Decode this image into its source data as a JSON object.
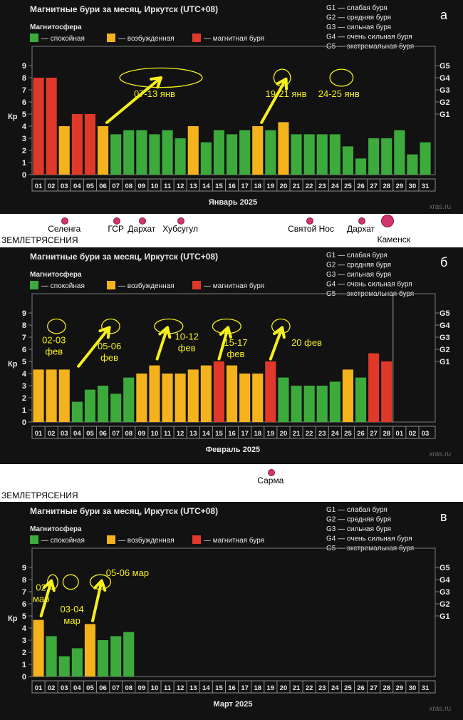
{
  "legend_keys": {
    "calm": "— спокойная",
    "excited": "— возбужденная",
    "storm": "— магнитная буря"
  },
  "storm_levels": [
    "G1 — слабая буря",
    "G2 — средняя буря",
    "G3 — сильная буря",
    "G4 — очень сильная буря",
    "G5 — экстремальная буря"
  ],
  "colors": {
    "calm": "#3cab3c",
    "excited": "#f4b31c",
    "storm": "#e0392a",
    "annotation": "#f5f01e"
  },
  "chart_data": [
    {
      "type": "bar",
      "panel_letter": "а",
      "title": "Магнитные бури за месяц, Иркутск (UTC+08)",
      "subtitle": "Магнитосфера",
      "xlabel": "Январь 2025",
      "ylabel": "Кр",
      "ylim": [
        0,
        9
      ],
      "yticks": [
        0,
        1,
        2,
        3,
        4,
        5,
        6,
        7,
        8,
        9
      ],
      "right_ticks": [
        [
          "G1",
          5
        ],
        [
          "G2",
          6
        ],
        [
          "G3",
          7
        ],
        [
          "G4",
          8
        ],
        [
          "G5",
          9
        ]
      ],
      "watermark": "xras.ru",
      "categories": [
        "01",
        "02",
        "03",
        "04",
        "05",
        "06",
        "07",
        "08",
        "09",
        "10",
        "11",
        "12",
        "13",
        "14",
        "15",
        "16",
        "17",
        "18",
        "19",
        "20",
        "21",
        "22",
        "23",
        "24",
        "25",
        "26",
        "27",
        "28",
        "29",
        "30",
        "31"
      ],
      "values": [
        8,
        8,
        4,
        5,
        5,
        4,
        3.33,
        3.67,
        3.67,
        3.33,
        3.67,
        3,
        4,
        2.67,
        3.67,
        3.33,
        3.67,
        4,
        3.67,
        4.33,
        3.33,
        3.33,
        3.33,
        3.33,
        2.33,
        1.33,
        3,
        3,
        3.67,
        1.67,
        2.67
      ],
      "levels": [
        "storm",
        "storm",
        "excited",
        "storm",
        "storm",
        "excited",
        "calm",
        "calm",
        "calm",
        "calm",
        "calm",
        "calm",
        "excited",
        "calm",
        "calm",
        "calm",
        "calm",
        "excited",
        "calm",
        "excited",
        "calm",
        "calm",
        "calm",
        "calm",
        "calm",
        "calm",
        "calm",
        "calm",
        "calm",
        "calm",
        "calm"
      ],
      "annotations": [
        {
          "text": "07-13 янв",
          "x": 10,
          "y": 6.4,
          "ellipse": [
            10.5,
            8,
            3.2,
            0.8
          ],
          "arrow": [
            [
              6.3,
              4.3
            ],
            [
              10.5,
              8
            ]
          ]
        },
        {
          "text": "19-21 янв",
          "x": 20.2,
          "y": 6.4,
          "ellipse": [
            19.9,
            8,
            0.65,
            0.7
          ],
          "arrow": [
            [
              18.3,
              4.3
            ],
            [
              20.2,
              7.9
            ]
          ]
        },
        {
          "text": "24-25 янв",
          "x": 24.3,
          "y": 6.4,
          "ellipse": [
            24.5,
            8,
            0.9,
            0.7
          ]
        }
      ]
    },
    {
      "type": "bar",
      "panel_letter": "б",
      "title": "Магнитные бури за месяц, Иркутск (UTC+08)",
      "subtitle": "Магнитосфера",
      "xlabel": "Февраль 2025",
      "ylabel": "Кр",
      "ylim": [
        0,
        9
      ],
      "yticks": [
        0,
        1,
        2,
        3,
        4,
        5,
        6,
        7,
        8,
        9
      ],
      "right_ticks": [
        [
          "G1",
          5
        ],
        [
          "G2",
          6
        ],
        [
          "G3",
          7
        ],
        [
          "G4",
          8
        ],
        [
          "G5",
          9
        ]
      ],
      "watermark": "xras.ru",
      "divider_after": 28,
      "categories": [
        "01",
        "02",
        "03",
        "04",
        "05",
        "06",
        "07",
        "08",
        "09",
        "10",
        "11",
        "12",
        "13",
        "14",
        "15",
        "16",
        "17",
        "18",
        "19",
        "20",
        "21",
        "22",
        "23",
        "24",
        "25",
        "26",
        "27",
        "28",
        "01",
        "02",
        "03"
      ],
      "values": [
        4.33,
        4.33,
        4.33,
        1.67,
        2.67,
        3,
        2.33,
        3.67,
        4,
        4.67,
        4,
        4,
        4.33,
        4.67,
        5,
        4.67,
        4,
        4,
        5,
        3.67,
        3,
        3,
        3,
        3.33,
        4.33,
        3.67,
        5.67,
        5,
        null,
        null,
        null
      ],
      "levels": [
        "excited",
        "excited",
        "excited",
        "calm",
        "calm",
        "calm",
        "calm",
        "calm",
        "excited",
        "excited",
        "excited",
        "excited",
        "excited",
        "excited",
        "storm",
        "excited",
        "excited",
        "excited",
        "storm",
        "calm",
        "calm",
        "calm",
        "calm",
        "calm",
        "excited",
        "calm",
        "storm",
        "storm",
        null,
        null,
        null
      ],
      "annotations": [
        {
          "text": "02-03",
          "text2": "фев",
          "x": 2.2,
          "y": 6.5,
          "ellipse": [
            2.4,
            7.9,
            0.7,
            0.6
          ]
        },
        {
          "text": "05-06",
          "text2": "фев",
          "x": 6.5,
          "y": 6,
          "ellipse": [
            6.6,
            7.9,
            0.7,
            0.6
          ],
          "arrow": [
            [
              4.1,
              4.6
            ],
            [
              6.5,
              7.8
            ]
          ]
        },
        {
          "text": "10-12",
          "text2": "фев",
          "x": 12.5,
          "y": 6.8,
          "ellipse": [
            11.1,
            7.9,
            1.1,
            0.6
          ],
          "arrow": [
            [
              10.2,
              5.2
            ],
            [
              11,
              7.8
            ]
          ]
        },
        {
          "text": "15-17",
          "text2": "фев",
          "x": 16.3,
          "y": 6.3,
          "ellipse": [
            15.6,
            7.9,
            1.1,
            0.6
          ],
          "arrow": [
            [
              15,
              5.2
            ],
            [
              15.7,
              7.8
            ]
          ]
        },
        {
          "text": "20 фев",
          "x": 21.8,
          "y": 6.3,
          "ellipse": [
            19.8,
            7.9,
            0.7,
            0.6
          ],
          "arrow": [
            [
              19,
              5.2
            ],
            [
              19.9,
              7.8
            ]
          ]
        }
      ]
    },
    {
      "type": "bar",
      "panel_letter": "в",
      "title": "Магнитные бури за месяц, Иркутск (UTC+08)",
      "subtitle": "Магнитосфера",
      "xlabel": "Март 2025",
      "ylabel": "Кр",
      "ylim": [
        0,
        9
      ],
      "yticks": [
        0,
        1,
        2,
        3,
        4,
        5,
        6,
        7,
        8,
        9
      ],
      "right_ticks": [
        [
          "G1",
          5
        ],
        [
          "G2",
          6
        ],
        [
          "G3",
          7
        ],
        [
          "G4",
          8
        ],
        [
          "G5",
          9
        ]
      ],
      "watermark": "xras.ru",
      "categories": [
        "01",
        "02",
        "03",
        "04",
        "05",
        "06",
        "07",
        "08",
        "09",
        "10",
        "11",
        "12",
        "13",
        "14",
        "15",
        "16",
        "17",
        "18",
        "19",
        "20",
        "21",
        "22",
        "23",
        "24",
        "25",
        "26",
        "27",
        "28",
        "29",
        "30",
        "31"
      ],
      "values": [
        4.67,
        3.33,
        1.67,
        2.33,
        4.33,
        3,
        3.33,
        3.67,
        null,
        null,
        null,
        null,
        null,
        null,
        null,
        null,
        null,
        null,
        null,
        null,
        null,
        null,
        null,
        null,
        null,
        null,
        null,
        null,
        null,
        null,
        null
      ],
      "levels": [
        "excited",
        "calm",
        "calm",
        "calm",
        "excited",
        "calm",
        "calm",
        "calm",
        null,
        null,
        null,
        null,
        null,
        null,
        null,
        null,
        null,
        null,
        null,
        null,
        null,
        null,
        null,
        null,
        null,
        null,
        null,
        null,
        null,
        null,
        null
      ],
      "annotations": [
        {
          "text": "02",
          "text2": "мар",
          "x": 1.2,
          "y": 7.1,
          "ellipse": [
            2.1,
            7.8,
            0.4,
            0.6
          ],
          "arrow": [
            [
              1.2,
              5
            ],
            [
              2,
              7.9
            ]
          ]
        },
        {
          "text": "03-04",
          "text2": "мар",
          "x": 3.6,
          "y": 5.3,
          "ellipse": [
            3.5,
            7.8,
            0.6,
            0.6
          ]
        },
        {
          "text": "05-06 мар",
          "x": 7.9,
          "y": 8.3,
          "ellipse": [
            5.8,
            7.8,
            0.8,
            0.6
          ],
          "arrow": [
            [
              5.2,
              4.6
            ],
            [
              5.9,
              7.9
            ]
          ]
        }
      ]
    }
  ],
  "earthquakes": [
    {
      "label": "ЗЕМЛЕТРЯСЕНИЯ",
      "places": [
        {
          "name": "Селенга",
          "day": 3
        },
        {
          "name": "ГСР",
          "day": 7
        },
        {
          "name": "Дархат",
          "day": 9
        },
        {
          "name": "Хубсугул",
          "day": 12
        },
        {
          "name": "Святой Нос",
          "day": 22
        },
        {
          "name": "Дархат",
          "day": 26
        },
        {
          "name": "Каменск",
          "day": 28
        }
      ]
    },
    {
      "label": "ЗЕМЛЕТРЯСЕНИЯ",
      "places": [
        {
          "name": "Сарма",
          "day": 19
        }
      ]
    }
  ]
}
